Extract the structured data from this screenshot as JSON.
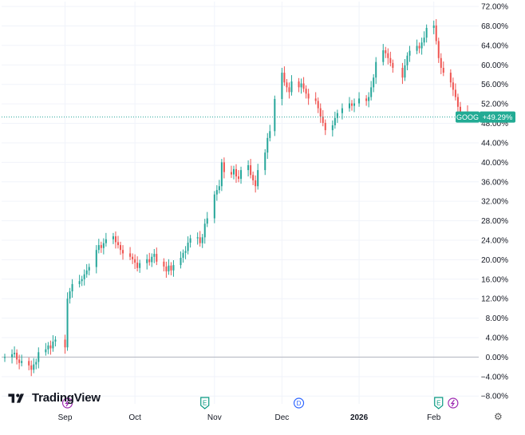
{
  "chart_data": {
    "type": "candlestick",
    "symbol": "GOOG",
    "last_change": "+49.29%",
    "last_value": 49.29,
    "y_unit": "%",
    "ylim": [
      -9.6,
      73.0
    ],
    "y_ticks": [
      72,
      68,
      64,
      60,
      56,
      52,
      48,
      44,
      40,
      36,
      32,
      28,
      24,
      20,
      16,
      12,
      8,
      4,
      0,
      -4,
      -8
    ],
    "y_tick_labels": [
      "72.00%",
      "68.00%",
      "64.00%",
      "60.00%",
      "56.00%",
      "52.00%",
      "48.00%",
      "44.00%",
      "40.00%",
      "36.00%",
      "32.00%",
      "28.00%",
      "24.00%",
      "20.00%",
      "16.00%",
      "12.00%",
      "8.00%",
      "4.00%",
      "0.00%",
      "−4.00%",
      "−8.00%"
    ],
    "x_ticks": [
      {
        "label": "Sep",
        "date": "2025-09-02"
      },
      {
        "label": "Oct",
        "date": "2025-10-01"
      },
      {
        "label": "Nov",
        "date": "2025-11-03"
      },
      {
        "label": "Dec",
        "date": "2025-12-01"
      },
      {
        "label": "2026",
        "date": "2026-01-02",
        "bold": true
      },
      {
        "label": "Feb",
        "date": "2026-02-02"
      }
    ],
    "x_range": [
      "2025-08-08",
      "2026-02-16"
    ],
    "series": [
      {
        "values": [
          {
            "date": "2025-08-08",
            "v": 0.0
          },
          {
            "date": "2025-08-11",
            "v": 0.6
          },
          {
            "date": "2025-08-12",
            "v": 0.9
          },
          {
            "date": "2025-08-13",
            "v": -0.5
          },
          {
            "date": "2025-08-14",
            "v": -1.2
          },
          {
            "date": "2025-08-15",
            "v": -0.8
          },
          {
            "date": "2025-08-18",
            "v": -1.7
          },
          {
            "date": "2025-08-19",
            "v": -2.6
          },
          {
            "date": "2025-08-20",
            "v": -1.5
          },
          {
            "date": "2025-08-21",
            "v": -1.0
          },
          {
            "date": "2025-08-22",
            "v": 1.0
          },
          {
            "date": "2025-08-25",
            "v": 1.6
          },
          {
            "date": "2025-08-26",
            "v": 2.4
          },
          {
            "date": "2025-08-27",
            "v": 1.8
          },
          {
            "date": "2025-08-28",
            "v": 3.2
          },
          {
            "date": "2025-08-29",
            "v": 3.6
          },
          {
            "date": "2025-09-02",
            "v": 2.0
          },
          {
            "date": "2025-09-03",
            "v": 12.0
          },
          {
            "date": "2025-09-04",
            "v": 13.5
          },
          {
            "date": "2025-09-05",
            "v": 15.0
          },
          {
            "date": "2025-09-08",
            "v": 15.6
          },
          {
            "date": "2025-09-09",
            "v": 16.0
          },
          {
            "date": "2025-09-10",
            "v": 17.0
          },
          {
            "date": "2025-09-11",
            "v": 17.8
          },
          {
            "date": "2025-09-12",
            "v": 18.5
          },
          {
            "date": "2025-09-15",
            "v": 22.0
          },
          {
            "date": "2025-09-16",
            "v": 23.0
          },
          {
            "date": "2025-09-17",
            "v": 22.4
          },
          {
            "date": "2025-09-18",
            "v": 23.4
          },
          {
            "date": "2025-09-19",
            "v": 24.2
          },
          {
            "date": "2025-09-22",
            "v": 24.8
          },
          {
            "date": "2025-09-23",
            "v": 23.6
          },
          {
            "date": "2025-09-24",
            "v": 23.0
          },
          {
            "date": "2025-09-25",
            "v": 22.0
          },
          {
            "date": "2025-09-26",
            "v": 21.3
          },
          {
            "date": "2025-09-29",
            "v": 20.6
          },
          {
            "date": "2025-09-30",
            "v": 20.1
          },
          {
            "date": "2025-10-01",
            "v": 19.4
          },
          {
            "date": "2025-10-02",
            "v": 18.3
          },
          {
            "date": "2025-10-03",
            "v": 19.3
          },
          {
            "date": "2025-10-06",
            "v": 20.1
          },
          {
            "date": "2025-10-07",
            "v": 19.5
          },
          {
            "date": "2025-10-08",
            "v": 20.6
          },
          {
            "date": "2025-10-09",
            "v": 21.2
          },
          {
            "date": "2025-10-10",
            "v": 19.6
          },
          {
            "date": "2025-10-13",
            "v": 18.6
          },
          {
            "date": "2025-10-14",
            "v": 17.6
          },
          {
            "date": "2025-10-15",
            "v": 18.8
          },
          {
            "date": "2025-10-16",
            "v": 17.8
          },
          {
            "date": "2025-10-17",
            "v": 18.9
          },
          {
            "date": "2025-10-20",
            "v": 20.4
          },
          {
            "date": "2025-10-21",
            "v": 21.4
          },
          {
            "date": "2025-10-22",
            "v": 21.8
          },
          {
            "date": "2025-10-23",
            "v": 23.5
          },
          {
            "date": "2025-10-24",
            "v": 24.4
          },
          {
            "date": "2025-10-27",
            "v": 24.6
          },
          {
            "date": "2025-10-28",
            "v": 23.4
          },
          {
            "date": "2025-10-29",
            "v": 24.6
          },
          {
            "date": "2025-10-30",
            "v": 27.4
          },
          {
            "date": "2025-10-31",
            "v": 28.5
          },
          {
            "date": "2025-11-03",
            "v": 33.4
          },
          {
            "date": "2025-11-04",
            "v": 34.3
          },
          {
            "date": "2025-11-05",
            "v": 35.1
          },
          {
            "date": "2025-11-06",
            "v": 40.0
          },
          {
            "date": "2025-11-07",
            "v": 38.0
          },
          {
            "date": "2025-11-10",
            "v": 37.5
          },
          {
            "date": "2025-11-11",
            "v": 38.6
          },
          {
            "date": "2025-11-12",
            "v": 37.1
          },
          {
            "date": "2025-11-13",
            "v": 36.6
          },
          {
            "date": "2025-11-14",
            "v": 38.4
          },
          {
            "date": "2025-11-17",
            "v": 39.4
          },
          {
            "date": "2025-11-18",
            "v": 37.4
          },
          {
            "date": "2025-11-19",
            "v": 36.3
          },
          {
            "date": "2025-11-20",
            "v": 35.1
          },
          {
            "date": "2025-11-21",
            "v": 38.4
          },
          {
            "date": "2025-11-24",
            "v": 42.0
          },
          {
            "date": "2025-11-25",
            "v": 45.0
          },
          {
            "date": "2025-11-26",
            "v": 46.4
          },
          {
            "date": "2025-11-28",
            "v": 53.0
          },
          {
            "date": "2025-12-01",
            "v": 58.4
          },
          {
            "date": "2025-12-02",
            "v": 56.4
          },
          {
            "date": "2025-12-03",
            "v": 55.4
          },
          {
            "date": "2025-12-04",
            "v": 54.4
          },
          {
            "date": "2025-12-05",
            "v": 56.6
          },
          {
            "date": "2025-12-08",
            "v": 55.4
          },
          {
            "date": "2025-12-09",
            "v": 56.2
          },
          {
            "date": "2025-12-10",
            "v": 55.1
          },
          {
            "date": "2025-12-11",
            "v": 54.1
          },
          {
            "date": "2025-12-12",
            "v": 53.1
          },
          {
            "date": "2025-12-15",
            "v": 52.6
          },
          {
            "date": "2025-12-16",
            "v": 51.1
          },
          {
            "date": "2025-12-17",
            "v": 49.4
          },
          {
            "date": "2025-12-18",
            "v": 48.1
          },
          {
            "date": "2025-12-19",
            "v": 46.6
          },
          {
            "date": "2025-12-22",
            "v": 47.6
          },
          {
            "date": "2025-12-23",
            "v": 49.1
          },
          {
            "date": "2025-12-24",
            "v": 50.1
          },
          {
            "date": "2025-12-26",
            "v": 51.1
          },
          {
            "date": "2025-12-29",
            "v": 52.1
          },
          {
            "date": "2025-12-30",
            "v": 51.6
          },
          {
            "date": "2025-12-31",
            "v": 52.1
          },
          {
            "date": "2026-01-02",
            "v": 53.1
          },
          {
            "date": "2026-01-05",
            "v": 52.6
          },
          {
            "date": "2026-01-06",
            "v": 53.4
          },
          {
            "date": "2026-01-07",
            "v": 55.4
          },
          {
            "date": "2026-01-08",
            "v": 57.4
          },
          {
            "date": "2026-01-09",
            "v": 60.6
          },
          {
            "date": "2026-01-12",
            "v": 63.0
          },
          {
            "date": "2026-01-13",
            "v": 62.4
          },
          {
            "date": "2026-01-14",
            "v": 61.4
          },
          {
            "date": "2026-01-15",
            "v": 60.4
          },
          {
            "date": "2026-01-16",
            "v": 59.4
          },
          {
            "date": "2026-01-20",
            "v": 57.4
          },
          {
            "date": "2026-01-21",
            "v": 59.9
          },
          {
            "date": "2026-01-22",
            "v": 61.9
          },
          {
            "date": "2026-01-23",
            "v": 62.9
          },
          {
            "date": "2026-01-26",
            "v": 63.9
          },
          {
            "date": "2026-01-27",
            "v": 63.4
          },
          {
            "date": "2026-01-28",
            "v": 64.6
          },
          {
            "date": "2026-01-29",
            "v": 65.6
          },
          {
            "date": "2026-01-30",
            "v": 67.6
          },
          {
            "date": "2026-02-02",
            "v": 68.1
          },
          {
            "date": "2026-02-03",
            "v": 64.9
          },
          {
            "date": "2026-02-04",
            "v": 61.4
          },
          {
            "date": "2026-02-05",
            "v": 59.4
          },
          {
            "date": "2026-02-06",
            "v": 58.4
          },
          {
            "date": "2026-02-09",
            "v": 56.4
          },
          {
            "date": "2026-02-10",
            "v": 54.9
          },
          {
            "date": "2026-02-11",
            "v": 53.4
          },
          {
            "date": "2026-02-12",
            "v": 51.4
          },
          {
            "date": "2026-02-13",
            "v": 50.4
          },
          {
            "date": "2026-02-16",
            "v": 49.3
          }
        ]
      }
    ],
    "grid": true,
    "colors": {
      "up": "#26a69a",
      "down": "#ef5350",
      "grid": "#f0f3fa",
      "zero_line": "#b2b5be",
      "last_line": "#26a69a",
      "badge_bg": "#22ab94",
      "event_earnings": "#089981",
      "event_dividend": "#2962ff",
      "event_split": "#9c27b0"
    },
    "events": [
      {
        "date": "2025-09-03",
        "type": "split",
        "label": ""
      },
      {
        "date": "2025-10-30",
        "type": "earnings",
        "label": "E"
      },
      {
        "date": "2025-12-08",
        "type": "dividend",
        "label": "D"
      },
      {
        "date": "2026-02-04",
        "type": "earnings",
        "label": "E"
      },
      {
        "date": "2026-02-10",
        "type": "split",
        "label": ""
      }
    ]
  },
  "branding": {
    "logo_text": "TradingView",
    "logo_icon": "tradingview-logo-icon"
  },
  "settings": {
    "icon": "gear-icon"
  }
}
